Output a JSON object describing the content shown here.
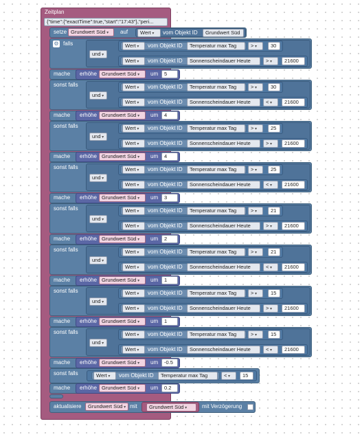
{
  "header_title": "Zeitplan",
  "schedule_json": "{\"time\":{\"exactTime\":true,\"start\":\"17:43\"},\"peri...",
  "setze": {
    "label": "setze",
    "target": "Grundwert Süd",
    "auf": "auf",
    "prop": "Wert",
    "vom_objekt_id": "vom Objekt ID",
    "object": "Grundwert Süd"
  },
  "labels": {
    "falls": "falls",
    "sonst_falls": "sonst falls",
    "und": "und",
    "mache": "mache",
    "erhoehe": "erhöhe",
    "um": "um",
    "wert": "Wert",
    "vom_objekt_id": "vom Objekt ID"
  },
  "objects": {
    "temp": "Temperatur max Tag",
    "sun": "Sonnenscheindauer Heute"
  },
  "branches": [
    {
      "label": "falls",
      "t_op": ">",
      "t_val": "30",
      "s_op": ">",
      "s_val": "21600",
      "var": "Grundwert Süd",
      "amount": "5"
    },
    {
      "label": "sonst falls",
      "t_op": ">",
      "t_val": "30",
      "s_op": "<",
      "s_val": "21600",
      "var": "Grundwert Süd",
      "amount": "4"
    },
    {
      "label": "sonst falls",
      "t_op": ">",
      "t_val": "25",
      "s_op": ">",
      "s_val": "21600",
      "var": "Grundwert Süd",
      "amount": "4"
    },
    {
      "label": "sonst falls",
      "t_op": ">",
      "t_val": "25",
      "s_op": "<",
      "s_val": "21600",
      "var": "Grundwert Süd",
      "amount": "3"
    },
    {
      "label": "sonst falls",
      "t_op": ">",
      "t_val": "21",
      "s_op": ">",
      "s_val": "21600",
      "var": "Grundwert Süd",
      "amount": "2"
    },
    {
      "label": "sonst falls",
      "t_op": ">",
      "t_val": "21",
      "s_op": "<",
      "s_val": "21600",
      "var": "Grundwert Süd",
      "amount": "1"
    },
    {
      "label": "sonst falls",
      "t_op": ">",
      "t_val": "15",
      "s_op": ">",
      "s_val": "21600",
      "var": "Grundwert Süd",
      "amount": "1"
    },
    {
      "label": "sonst falls",
      "t_op": ">",
      "t_val": "15",
      "s_op": "<",
      "s_val": "21600",
      "var": "Grundwert Süd",
      "amount": "-0.5"
    }
  ],
  "last_branch": {
    "label": "sonst falls",
    "prop": "Wert",
    "vom_objekt_id": "vom Objekt ID",
    "object": "Temperatur max Tag",
    "op": "<",
    "value": "15",
    "mache": "mache",
    "var": "Grundwert Süd",
    "amount": "0.2"
  },
  "update": {
    "label": "aktualisiere",
    "target": "Grundwert Süd",
    "mit": "mit",
    "value": "Grundwert Süd",
    "delay_label": "mit Verzögerung",
    "delay_checked": false
  },
  "colors": {
    "schedule_block": "#a55b80",
    "logic_block": "#5b80a5",
    "math_block": "#5b67a5",
    "workspace_bg": "#ffffff"
  },
  "icons": {
    "gear": "gear-icon",
    "dropdown": "chevron-down-icon",
    "checkbox": "checkbox-icon"
  }
}
